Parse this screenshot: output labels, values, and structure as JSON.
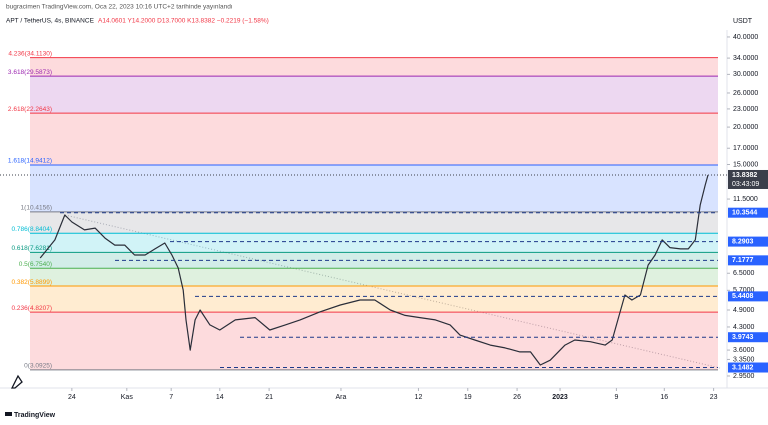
{
  "chart_data": {
    "type": "line",
    "subtitle": "bugracimen TradingView.com, Oca 22, 2023 10:16 UTC+2 tarihinde yayınlandı",
    "title": "APT / TetherUS, 4s, BINANCE",
    "ohlc": "A14.0601  Y14.2000  D13.7000  K13.8382  −0.2219 (−1.58%)",
    "y_label": "USDT",
    "footer": "TradingView",
    "log_scale": true,
    "xlim": [
      -10.2,
      93
    ],
    "xticks": [
      {
        "value": 0,
        "label": "24"
      },
      {
        "value": 7.8,
        "label": "Kas"
      },
      {
        "value": 14.1,
        "label": "7"
      },
      {
        "value": 21,
        "label": "14"
      },
      {
        "value": 28,
        "label": "21"
      },
      {
        "value": 38.2,
        "label": "Ara"
      },
      {
        "value": 49.2,
        "label": "12"
      },
      {
        "value": 56.2,
        "label": "19"
      },
      {
        "value": 63.2,
        "label": "26"
      },
      {
        "value": 69.3,
        "label": "2023"
      },
      {
        "value": 77.3,
        "label": "9"
      },
      {
        "value": 84.1,
        "label": "16"
      },
      {
        "value": 91.1,
        "label": "23"
      }
    ],
    "ylim": [
      2.86,
      42.2
    ],
    "yticks": [
      {
        "value": 40,
        "label": "40.0000"
      },
      {
        "value": 34,
        "label": "34.0000"
      },
      {
        "value": 30,
        "label": "30.0000"
      },
      {
        "value": 26,
        "label": "26.0000"
      },
      {
        "value": 23,
        "label": "23.0000"
      },
      {
        "value": 20,
        "label": "20.0000"
      },
      {
        "value": 17,
        "label": "17.0000"
      },
      {
        "value": 15,
        "label": "15.0000"
      },
      {
        "value": 11.5,
        "label": "11.5000"
      },
      {
        "value": 6.5,
        "label": "6.5000"
      },
      {
        "value": 5.7,
        "label": "5.7000"
      },
      {
        "value": 4.9,
        "label": "4.9000"
      },
      {
        "value": 4.3,
        "label": "4.3000"
      },
      {
        "value": 3.6,
        "label": "3.6000"
      },
      {
        "value": 3.35,
        "label": "3.3500"
      },
      {
        "value": 2.95,
        "label": "2.9500"
      }
    ],
    "x": [
      -4.5,
      -2.4,
      -1.0,
      0,
      1.8,
      3.3,
      4.7,
      6.1,
      7.5,
      8.9,
      10.4,
      11.8,
      13.2,
      14.2,
      15.1,
      15.8,
      16.2,
      16.8,
      17.5,
      18.2,
      19.6,
      21.0,
      23.2,
      26.0,
      28.1,
      30.3,
      32.4,
      35.2,
      38.1,
      40.9,
      43.0,
      45.2,
      47.3,
      49.4,
      51.6,
      53.7,
      55.1,
      57.2,
      59.4,
      61.5,
      63.6,
      65.1,
      66.5,
      67.9,
      70.0,
      71.4,
      73.6,
      75.7,
      76.7,
      77.6,
      78.5,
      79.5,
      80.7,
      81.8,
      82.8,
      83.8,
      84.9,
      86.4,
      87.5,
      88.5,
      89.2,
      89.9,
      90.3
    ],
    "series": [
      {
        "color": "#2a2e39",
        "values": [
          7.31,
          8.4,
          10.17,
          9.64,
          9.07,
          9.2,
          8.52,
          8.07,
          8.07,
          7.48,
          7.48,
          7.84,
          8.2,
          7.48,
          6.77,
          5.71,
          4.54,
          3.6,
          4.54,
          4.9,
          4.37,
          4.2,
          4.54,
          4.62,
          4.2,
          4.37,
          4.54,
          4.83,
          5.09,
          5.29,
          5.29,
          4.9,
          4.7,
          4.62,
          4.54,
          4.37,
          4.04,
          3.89,
          3.74,
          3.66,
          3.55,
          3.55,
          3.21,
          3.33,
          3.74,
          3.89,
          3.84,
          3.74,
          3.89,
          4.62,
          5.5,
          5.29,
          5.5,
          6.92,
          7.48,
          8.4,
          7.92,
          7.84,
          7.84,
          8.4,
          10.99,
          12.8,
          13.8382
        ]
      }
    ],
    "fib_levels": [
      {
        "label": "4.236(34.1130)",
        "value": 34.113,
        "color": "#f23645"
      },
      {
        "label": "3.618(29.5873)",
        "value": 29.5873,
        "color": "#9c27b0"
      },
      {
        "label": "2.618(22.2643)",
        "value": 22.2643,
        "color": "#f23645"
      },
      {
        "label": "1.618(14.9412)",
        "value": 14.9412,
        "color": "#2962ff"
      },
      {
        "label": "1(10.4156)",
        "value": 10.4156,
        "color": "#787b86"
      },
      {
        "label": "0.786(8.8404)",
        "value": 8.8404,
        "color": "#00bcd4"
      },
      {
        "label": "0.618(7.6281)",
        "value": 7.6281,
        "color": "#089981"
      },
      {
        "label": "0.5(6.7540)",
        "value": 6.754,
        "color": "#4caf50"
      },
      {
        "label": "0.382(5.8899)",
        "value": 5.8899,
        "color": "#ff9800"
      },
      {
        "label": "0.236(4.8207)",
        "value": 4.8207,
        "color": "#f23645"
      },
      {
        "label": "0(3.0925)",
        "value": 3.0925,
        "color": "#787b86"
      }
    ],
    "price_lines": [
      10.3544,
      8.2903,
      7.1777,
      5.4408,
      3.9743,
      3.1482
    ],
    "price_line_color": "#2962ff",
    "last_price": 13.8382,
    "countdown": "03:43:09"
  }
}
